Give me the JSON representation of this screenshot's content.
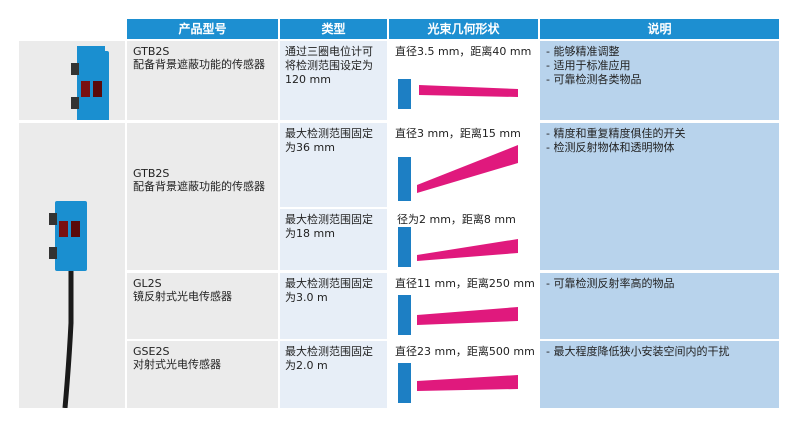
{
  "header": {
    "col_product": "产品型号",
    "col_type": "类型",
    "col_beam": "光束几何形状",
    "col_desc": "说明"
  },
  "colors": {
    "header_blue": "#1d8fd1",
    "emitter_blue": "#1d7fc4",
    "beam_pink": "#e0197d",
    "desc_bg": "#b8d3ec"
  },
  "rows": [
    {
      "product_code": "GTB2S",
      "product_desc": "配备背景遮蔽功能的传感器",
      "type": "通过三圈电位计可将检测范围设定为120 mm",
      "beam": "直径3.5 mm，距离40 mm",
      "desc": [
        "- 能够精准调整",
        "- 适用于标准应用",
        "- 可靠检测各类物品"
      ]
    },
    {
      "product_code": "GTB2S",
      "product_desc": "配备背景遮蔽功能的传感器",
      "type": "最大检测范围固定为36 mm",
      "beam": "直径3 mm，距离15 mm",
      "desc": [
        "- 精度和重复精度俱佳的开关",
        "- 检测反射物体和透明物体"
      ]
    },
    {
      "type": "最大检测范围固定为18 mm",
      "beam": "径为2 mm，距离8 mm"
    },
    {
      "product_code": "GL2S",
      "product_desc": "镜反射式光电传感器",
      "type": "最大检测范围固定为3.0 m",
      "beam": "直径11 mm，距离250 mm",
      "desc": [
        "- 可靠检测反射率高的物品"
      ]
    },
    {
      "product_code": "GSE2S",
      "product_desc": "对射式光电传感器",
      "type": "最大检测范围固定为2.0 m",
      "beam": "直径23 mm，距离500 mm",
      "desc": [
        "- 最大程度降低狭小安装空间内的干扰"
      ]
    }
  ]
}
